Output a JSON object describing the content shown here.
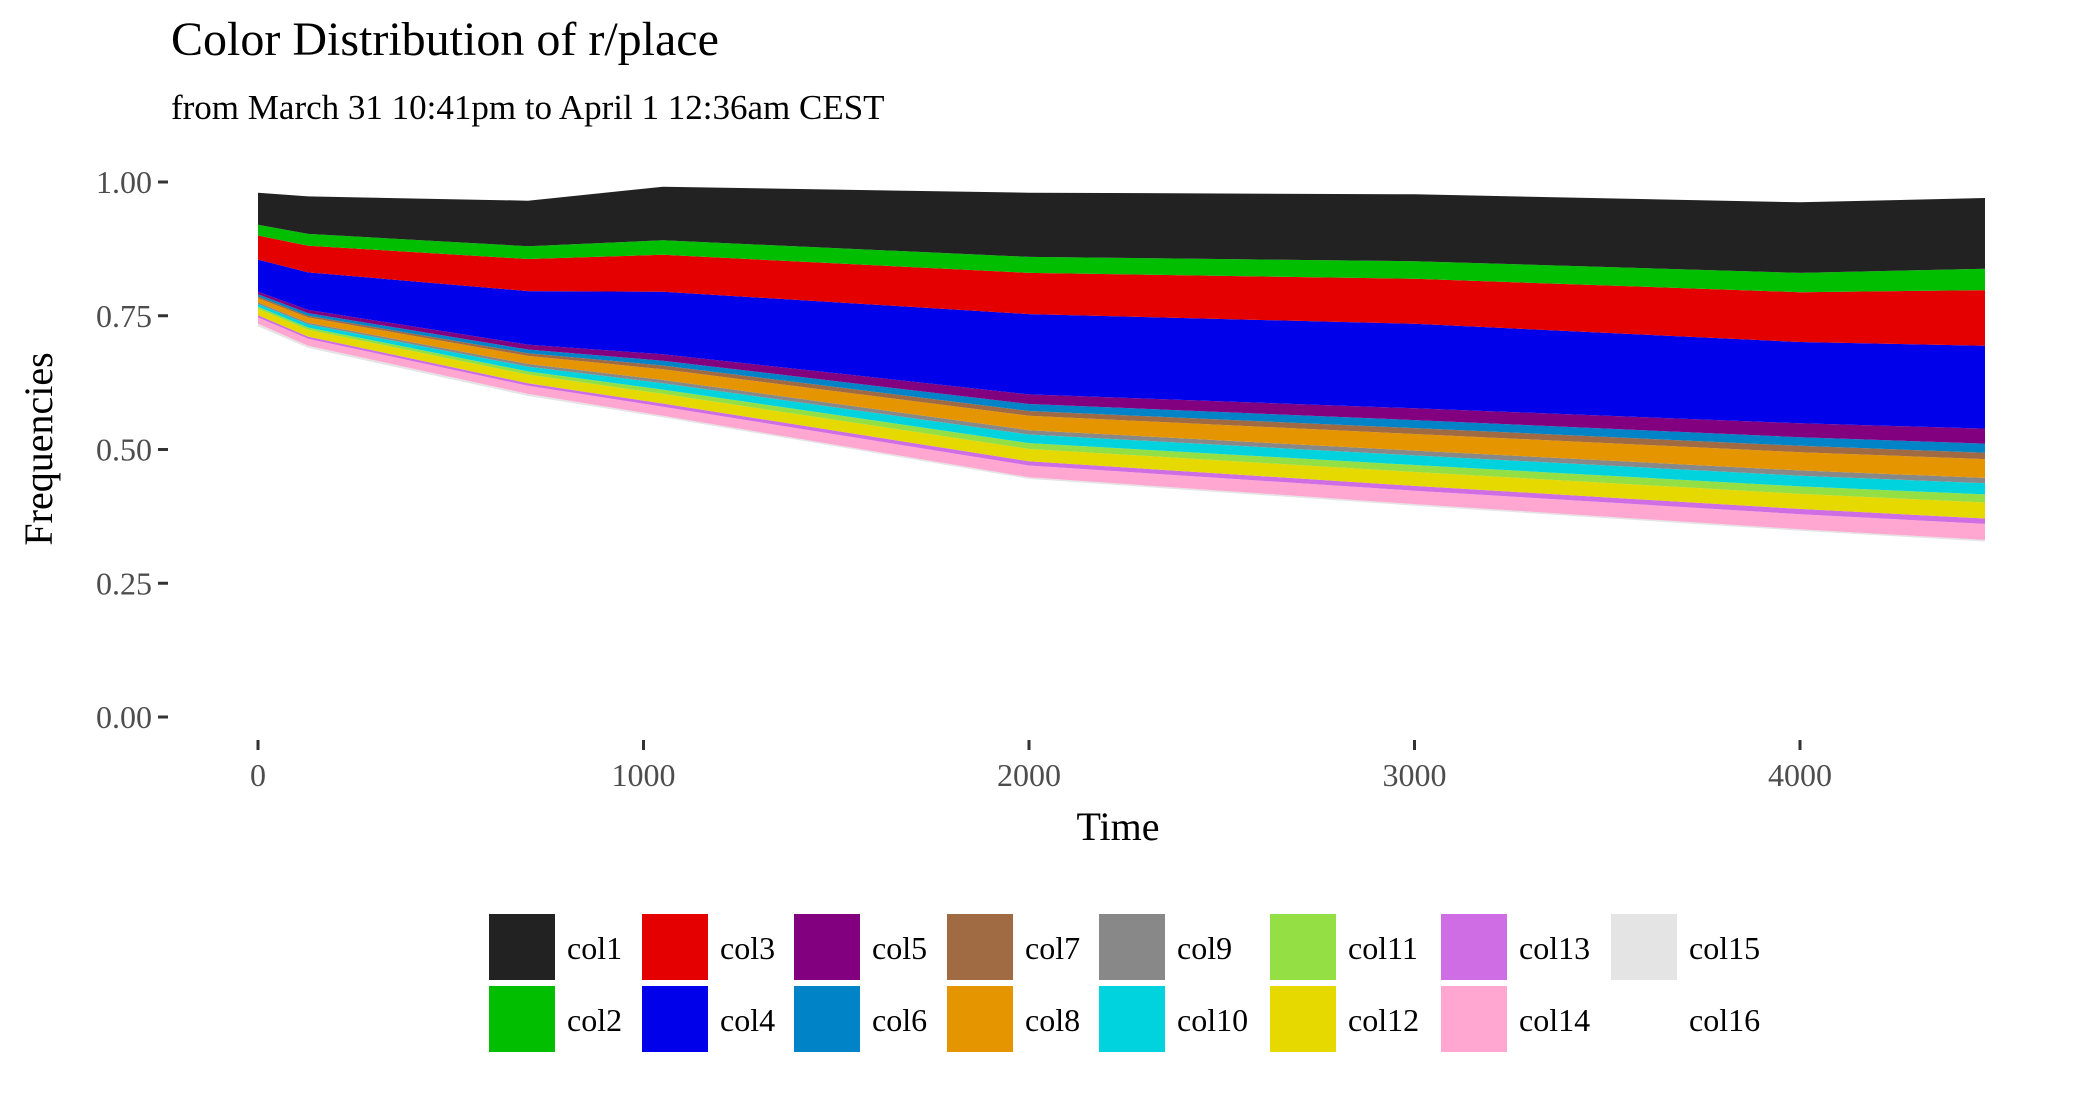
{
  "chart_data": {
    "type": "area",
    "stacked": true,
    "title": "Color Distribution of r/place",
    "subtitle": "from March 31 10:41pm to April 1 12:36am CEST",
    "xlabel": "Time",
    "ylabel": "Frequencies",
    "xlim": [
      0,
      4500
    ],
    "ylim": [
      0,
      1
    ],
    "x_ticks": [
      0,
      1000,
      2000,
      3000,
      4000
    ],
    "x_tick_labels": [
      "0",
      "1000",
      "2000",
      "3000",
      "4000"
    ],
    "y_ticks": [
      0,
      0.25,
      0.5,
      0.75,
      1.0
    ],
    "y_tick_labels": [
      "0.00",
      "0.25",
      "0.50",
      "0.75",
      "1.00"
    ],
    "grid": false,
    "legend_position": "bottom",
    "x": [
      0,
      130,
      700,
      1050,
      2000,
      3000,
      4000,
      4480
    ],
    "series": [
      {
        "name": "col16",
        "color": "#ffffff",
        "values": [
          0.73,
          0.69,
          0.6,
          0.56,
          0.445,
          0.395,
          0.348,
          0.328
        ]
      },
      {
        "name": "col15",
        "color": "#e4e4e4",
        "values": [
          0.005,
          0.004,
          0.004,
          0.003,
          0.003,
          0.003,
          0.003,
          0.003
        ]
      },
      {
        "name": "col14",
        "color": "#ffa7d1",
        "values": [
          0.012,
          0.013,
          0.015,
          0.017,
          0.022,
          0.025,
          0.028,
          0.03
        ]
      },
      {
        "name": "col13",
        "color": "#cf6ee4",
        "values": [
          0.004,
          0.004,
          0.005,
          0.006,
          0.008,
          0.009,
          0.01,
          0.01
        ]
      },
      {
        "name": "col12",
        "color": "#e5d900",
        "values": [
          0.012,
          0.013,
          0.016,
          0.018,
          0.023,
          0.026,
          0.028,
          0.03
        ]
      },
      {
        "name": "col11",
        "color": "#94e044",
        "values": [
          0.004,
          0.004,
          0.006,
          0.008,
          0.011,
          0.013,
          0.014,
          0.015
        ]
      },
      {
        "name": "col10",
        "color": "#00d3dd",
        "values": [
          0.005,
          0.006,
          0.009,
          0.012,
          0.016,
          0.018,
          0.02,
          0.021
        ]
      },
      {
        "name": "col9",
        "color": "#888888",
        "values": [
          0.003,
          0.003,
          0.005,
          0.006,
          0.008,
          0.009,
          0.01,
          0.01
        ]
      },
      {
        "name": "col8",
        "color": "#e59500",
        "values": [
          0.008,
          0.01,
          0.015,
          0.02,
          0.027,
          0.031,
          0.034,
          0.035
        ]
      },
      {
        "name": "col7",
        "color": "#a06a42",
        "values": [
          0.003,
          0.003,
          0.005,
          0.007,
          0.009,
          0.011,
          0.012,
          0.012
        ]
      },
      {
        "name": "col6",
        "color": "#0083c7",
        "values": [
          0.004,
          0.005,
          0.007,
          0.009,
          0.013,
          0.015,
          0.016,
          0.017
        ]
      },
      {
        "name": "col5",
        "color": "#820080",
        "values": [
          0.005,
          0.006,
          0.009,
          0.012,
          0.018,
          0.022,
          0.026,
          0.028
        ]
      },
      {
        "name": "col4",
        "color": "#0000ea",
        "values": [
          0.06,
          0.07,
          0.1,
          0.117,
          0.15,
          0.158,
          0.152,
          0.155
        ]
      },
      {
        "name": "col3",
        "color": "#e50000",
        "values": [
          0.045,
          0.05,
          0.06,
          0.069,
          0.077,
          0.084,
          0.093,
          0.104
        ]
      },
      {
        "name": "col2",
        "color": "#02be01",
        "values": [
          0.02,
          0.022,
          0.024,
          0.027,
          0.03,
          0.033,
          0.036,
          0.04
        ]
      },
      {
        "name": "col1",
        "color": "#222222",
        "values": [
          0.06,
          0.07,
          0.085,
          0.1,
          0.12,
          0.125,
          0.132,
          0.132
        ]
      }
    ],
    "legend_order": [
      "col1",
      "col2",
      "col3",
      "col4",
      "col5",
      "col6",
      "col7",
      "col8",
      "col9",
      "col10",
      "col11",
      "col12",
      "col13",
      "col14",
      "col15",
      "col16"
    ]
  }
}
